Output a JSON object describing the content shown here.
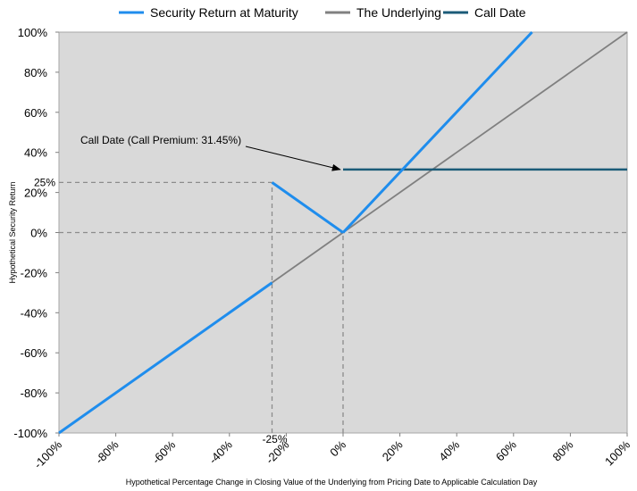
{
  "chart_data": {
    "type": "line",
    "title": "",
    "xlabel": "Hypothetical Percentage Change in Closing Value of the Underlying from Pricing Date to Applicable Calculation Day",
    "ylabel": "Hypothetical Security Return",
    "xlim": [
      -100,
      100
    ],
    "ylim": [
      -100,
      100
    ],
    "x_ticks": [
      -100,
      -80,
      -60,
      -40,
      -20,
      0,
      20,
      40,
      60,
      80,
      100
    ],
    "x_tick_labels": [
      "-100%",
      "-80%",
      "-60%",
      "-40%",
      "-20%",
      "0%",
      "20%",
      "40%",
      "60%",
      "80%",
      "100%"
    ],
    "y_ticks": [
      -100,
      -80,
      -60,
      -40,
      -20,
      0,
      20,
      40,
      60,
      80,
      100
    ],
    "y_tick_labels": [
      "-100%",
      "-80%",
      "-60%",
      "-40%",
      "-20%",
      "0%",
      "20%",
      "40%",
      "60%",
      "80%",
      "100%"
    ],
    "grid": false,
    "legend_position": "top",
    "background_color": "#d9d9d9",
    "series": [
      {
        "name": "Security Return at Maturity",
        "color": "#1f8ded",
        "segments": [
          {
            "x": [
              -100,
              -25
            ],
            "y": [
              -100,
              -25
            ]
          },
          {
            "x": [
              -25,
              0
            ],
            "y": [
              25,
              0
            ]
          },
          {
            "x": [
              0,
              66.5
            ],
            "y": [
              0,
              100
            ]
          }
        ]
      },
      {
        "name": "The Underlying",
        "color": "#808080",
        "segments": [
          {
            "x": [
              -100,
              100
            ],
            "y": [
              -100,
              100
            ]
          }
        ]
      },
      {
        "name": "Call Date",
        "color": "#1b5b78",
        "segments": [
          {
            "x": [
              0,
              100
            ],
            "y": [
              31.45,
              31.45
            ]
          }
        ]
      }
    ],
    "reference_lines": [
      {
        "x": [
          -100,
          -25
        ],
        "y": [
          25,
          25
        ]
      },
      {
        "x": [
          -25,
          -25
        ],
        "y": [
          -100,
          25
        ]
      },
      {
        "x": [
          -100,
          100
        ],
        "y": [
          0,
          0
        ]
      },
      {
        "x": [
          0,
          0
        ],
        "y": [
          -100,
          0
        ]
      }
    ],
    "annotations": {
      "left_marker": "25%",
      "bottom_marker": "-25%",
      "call_label": "Call Date (Call Premium: 31.45%)",
      "arrow_target": [
        -1,
        31.45
      ]
    }
  }
}
